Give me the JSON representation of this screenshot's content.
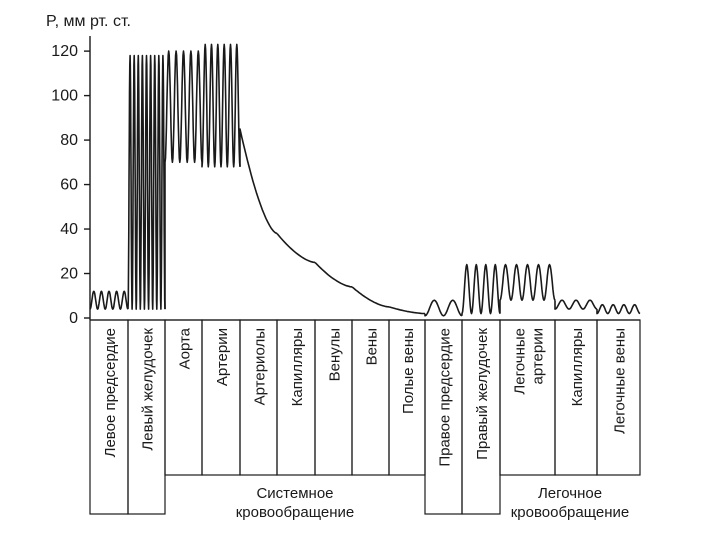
{
  "chart_data": {
    "type": "line",
    "ylabel": "P, мм рт. ст.",
    "ylim": [
      0,
      125
    ],
    "yticks": [
      0,
      20,
      40,
      60,
      80,
      100,
      120
    ],
    "segments": [
      {
        "label": "Левое предсердие",
        "kind": "osc",
        "min": 4,
        "max": 12,
        "cycles": 5
      },
      {
        "label": "Левый желудочек",
        "kind": "osc",
        "min": 4,
        "max": 118,
        "cycles": 9
      },
      {
        "label": "Аорта",
        "kind": "osc",
        "min": 70,
        "max": 120,
        "cycles": 5
      },
      {
        "label": "Артерии",
        "kind": "osc",
        "min": 68,
        "max": 123,
        "cycles": 6
      },
      {
        "label": "Артериолы",
        "kind": "ramp",
        "from": 85,
        "to": 38
      },
      {
        "label": "Капилляры",
        "kind": "ramp",
        "from": 38,
        "to": 25
      },
      {
        "label": "Венулы",
        "kind": "ramp",
        "from": 25,
        "to": 14
      },
      {
        "label": "Вены",
        "kind": "ramp",
        "from": 14,
        "to": 5
      },
      {
        "label": "Полые вены",
        "kind": "ramp",
        "from": 5,
        "to": 2
      },
      {
        "label": "Правое предсердие",
        "kind": "osc",
        "min": 1,
        "max": 8,
        "cycles": 2
      },
      {
        "label": "Правый желудочек",
        "kind": "osc",
        "min": 2,
        "max": 24,
        "cycles": 4
      },
      {
        "label": "Легочные артерии",
        "kind": "osc",
        "min": 8,
        "max": 24,
        "cycles": 5
      },
      {
        "label": "Капилляры",
        "kind": "osc",
        "min": 4,
        "max": 8,
        "cycles": 3
      },
      {
        "label": "Легочные вены",
        "kind": "osc",
        "min": 2,
        "max": 6,
        "cycles": 4
      }
    ],
    "groups": [
      {
        "label_lines": [
          "Системное",
          "кровообращение"
        ],
        "from_segment": 2,
        "to_segment": 8
      },
      {
        "label_lines": [
          "Легочное",
          "кровообращение"
        ],
        "from_segment": 11,
        "to_segment": 13
      }
    ]
  }
}
